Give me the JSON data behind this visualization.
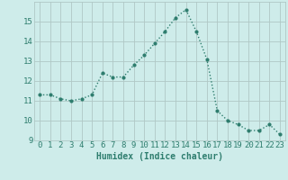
{
  "x": [
    0,
    1,
    2,
    3,
    4,
    5,
    6,
    7,
    8,
    9,
    10,
    11,
    12,
    13,
    14,
    15,
    16,
    17,
    18,
    19,
    20,
    21,
    22,
    23
  ],
  "y": [
    11.3,
    11.3,
    11.1,
    11.0,
    11.1,
    11.3,
    12.4,
    12.2,
    12.2,
    12.8,
    13.3,
    13.9,
    14.5,
    15.2,
    15.6,
    14.5,
    13.1,
    10.5,
    10.0,
    9.8,
    9.5,
    9.5,
    9.8,
    9.3
  ],
  "line_color": "#2e7d6e",
  "marker": ".",
  "marker_size": 4,
  "xlabel": "Humidex (Indice chaleur)",
  "ylim": [
    9,
    16
  ],
  "xlim_min": -0.5,
  "xlim_max": 23.5,
  "yticks": [
    9,
    10,
    11,
    12,
    13,
    14,
    15
  ],
  "xticks": [
    0,
    1,
    2,
    3,
    4,
    5,
    6,
    7,
    8,
    9,
    10,
    11,
    12,
    13,
    14,
    15,
    16,
    17,
    18,
    19,
    20,
    21,
    22,
    23
  ],
  "background_color": "#ceecea",
  "grid_color": "#b0c8c5",
  "tick_label_color": "#2e7d6e",
  "xlabel_color": "#2e7d6e",
  "xlabel_fontsize": 7,
  "tick_fontsize": 6.5
}
